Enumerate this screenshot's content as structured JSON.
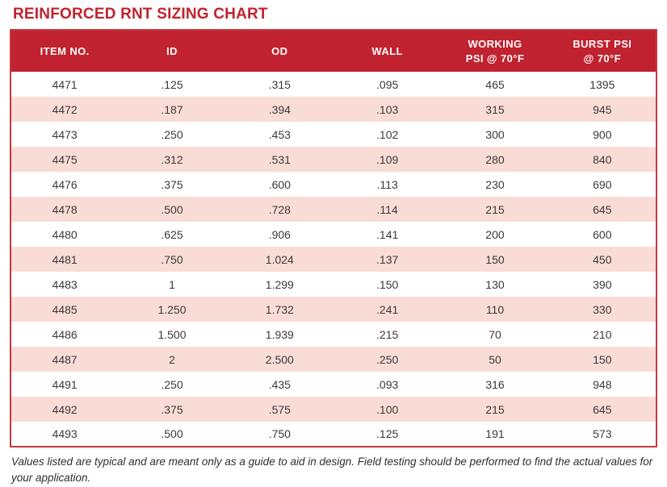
{
  "title": "REINFORCED RNT SIZING CHART",
  "footnote": "Values listed are typical and are meant only as a guide to aid in design. Field testing should be performed to find the actual values for your application.",
  "colors": {
    "accent_red": "#c1222f",
    "row_pink": "#f9dcd6",
    "header_text": "#ffffff",
    "cell_text": "#3a3a3a"
  },
  "chart_data": {
    "type": "table",
    "title": "REINFORCED RNT SIZING CHART",
    "columns": [
      "ITEM NO.",
      "ID",
      "OD",
      "WALL",
      "WORKING\nPSI @ 70°F",
      "BURST PSI\n@ 70°F"
    ],
    "rows": [
      [
        "4471",
        ".125",
        ".315",
        ".095",
        "465",
        "1395"
      ],
      [
        "4472",
        ".187",
        ".394",
        ".103",
        "315",
        "945"
      ],
      [
        "4473",
        ".250",
        ".453",
        ".102",
        "300",
        "900"
      ],
      [
        "4475",
        ".312",
        ".531",
        ".109",
        "280",
        "840"
      ],
      [
        "4476",
        ".375",
        ".600",
        ".113",
        "230",
        "690"
      ],
      [
        "4478",
        ".500",
        ".728",
        ".114",
        "215",
        "645"
      ],
      [
        "4480",
        ".625",
        ".906",
        ".141",
        "200",
        "600"
      ],
      [
        "4481",
        ".750",
        "1.024",
        ".137",
        "150",
        "450"
      ],
      [
        "4483",
        "1",
        "1.299",
        ".150",
        "130",
        "390"
      ],
      [
        "4485",
        "1.250",
        "1.732",
        ".241",
        "110",
        "330"
      ],
      [
        "4486",
        "1.500",
        "1.939",
        ".215",
        "70",
        "210"
      ],
      [
        "4487",
        "2",
        "2.500",
        ".250",
        "50",
        "150"
      ],
      [
        "4491",
        ".250",
        ".435",
        ".093",
        "316",
        "948"
      ],
      [
        "4492",
        ".375",
        ".575",
        ".100",
        "215",
        "645"
      ],
      [
        "4493",
        ".500",
        ".750",
        ".125",
        "191",
        "573"
      ]
    ],
    "layout": {
      "striping": "alternating white and pink rows starting white",
      "header_background": "#c1222f",
      "alignment": "center"
    }
  }
}
